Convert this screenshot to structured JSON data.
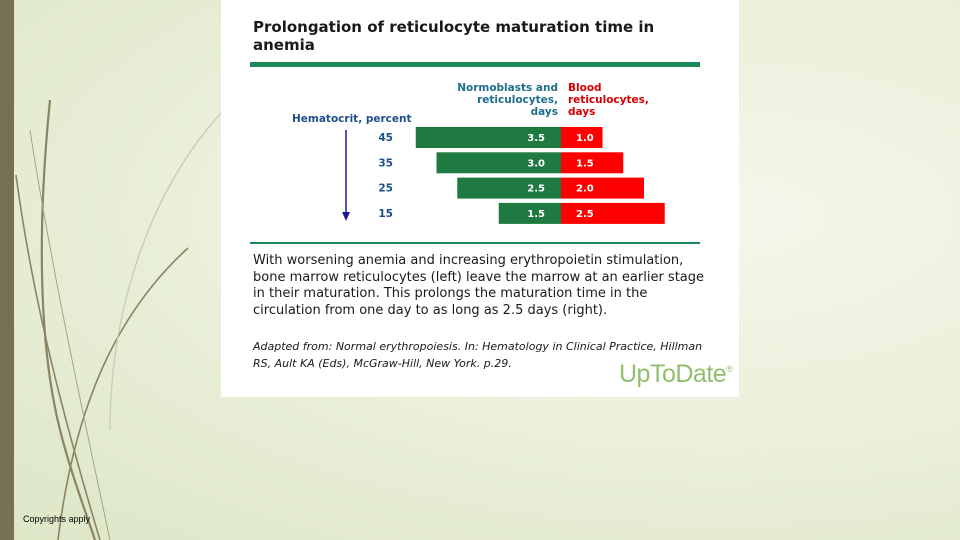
{
  "slide": {
    "copyright": "Copyrights apply",
    "colors": {
      "strip": "#767153",
      "background": "#eaf0da"
    }
  },
  "figure": {
    "title": "Prolongation of reticulocyte maturation time in anemia",
    "caption": "With worsening anemia and increasing erythropoietin stimulation, bone marrow reticulocytes (left) leave the marrow at an earlier stage in their maturation. This prolongs the maturation time in the circulation from one day to as long as 2.5 days (right).",
    "source": "Adapted from: Normal erythropoiesis. In: Hematology in Clinical Practice, Hillman RS, Ault KA (Eds), McGraw-Hill, New York. p.29.",
    "logo": "UpToDate",
    "logo_mark": "®",
    "colors": {
      "rule": "#1a8a5a",
      "logo": "#8ebf6a"
    }
  },
  "chart_data": {
    "type": "bar",
    "orientation": "horizontal",
    "stacked": true,
    "categories": [
      "45",
      "35",
      "25",
      "15"
    ],
    "ylabel": "Hematocrit, percent",
    "series": [
      {
        "name": "Normoblasts and reticulocytes, days",
        "values": [
          3.5,
          3.0,
          2.5,
          1.5
        ],
        "color": "#1e7a40",
        "label_color": "#1e6e8c"
      },
      {
        "name": "Blood reticulocytes, days",
        "values": [
          1.0,
          1.5,
          2.0,
          2.5
        ],
        "color": "#ff0000",
        "label_color": "#d40000"
      }
    ],
    "value_labels": [
      [
        "3.5",
        "3.0",
        "2.5",
        "1.5"
      ],
      [
        "1.0",
        "1.5",
        "2.0",
        "2.5"
      ]
    ],
    "axis_arrow_color": "#1a1a9a"
  }
}
